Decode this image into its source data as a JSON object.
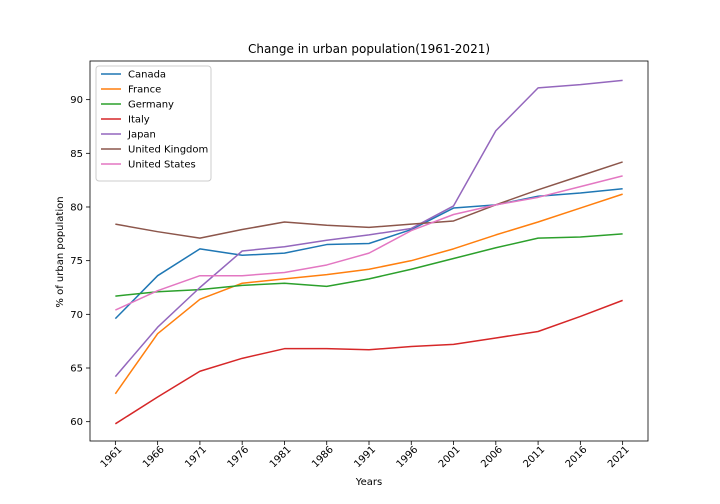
{
  "chart_data": {
    "type": "line",
    "title": "Change in urban population(1961-2021)",
    "xlabel": "Years",
    "ylabel": "% of urban population",
    "x": [
      1961,
      1966,
      1971,
      1976,
      1981,
      1986,
      1991,
      1996,
      2001,
      2006,
      2011,
      2016,
      2021
    ],
    "xticks": [
      "1961",
      "1966",
      "1971",
      "1976",
      "1981",
      "1986",
      "1991",
      "1996",
      "2001",
      "2006",
      "2011",
      "2016",
      "2021"
    ],
    "yticks": [
      "60",
      "65",
      "70",
      "75",
      "80",
      "85",
      "90"
    ],
    "ylim": [
      58.2,
      93.6
    ],
    "grid": false,
    "legend_position": "top-left",
    "series": [
      {
        "name": "Canada",
        "color": "#1f77b4",
        "values": [
          69.6,
          73.6,
          76.1,
          75.5,
          75.7,
          76.5,
          76.6,
          77.9,
          79.9,
          80.2,
          81.0,
          81.3,
          81.7
        ]
      },
      {
        "name": "France",
        "color": "#ff7f0e",
        "values": [
          62.6,
          68.2,
          71.4,
          72.9,
          73.3,
          73.7,
          74.2,
          75.0,
          76.1,
          77.4,
          78.6,
          79.9,
          81.2
        ]
      },
      {
        "name": "Germany",
        "color": "#2ca02c",
        "values": [
          71.7,
          72.1,
          72.3,
          72.7,
          72.9,
          72.6,
          73.3,
          74.2,
          75.2,
          76.2,
          77.1,
          77.2,
          77.5
        ]
      },
      {
        "name": "Italy",
        "color": "#d62728",
        "values": [
          59.8,
          62.3,
          64.7,
          65.9,
          66.8,
          66.8,
          66.7,
          67.0,
          67.2,
          67.8,
          68.4,
          69.8,
          71.3
        ]
      },
      {
        "name": "Japan",
        "color": "#9467bd",
        "values": [
          64.2,
          68.8,
          72.5,
          75.9,
          76.3,
          76.9,
          77.4,
          78.0,
          80.1,
          87.1,
          91.1,
          91.4,
          91.8
        ]
      },
      {
        "name": "United Kingdom",
        "color": "#8c564b",
        "values": [
          78.4,
          77.7,
          77.1,
          77.9,
          78.6,
          78.3,
          78.1,
          78.4,
          78.7,
          80.2,
          81.6,
          82.9,
          84.2
        ]
      },
      {
        "name": "United States",
        "color": "#e377c2",
        "values": [
          70.4,
          72.2,
          73.6,
          73.6,
          73.9,
          74.6,
          75.7,
          77.8,
          79.3,
          80.2,
          80.9,
          81.9,
          82.9
        ]
      }
    ]
  }
}
